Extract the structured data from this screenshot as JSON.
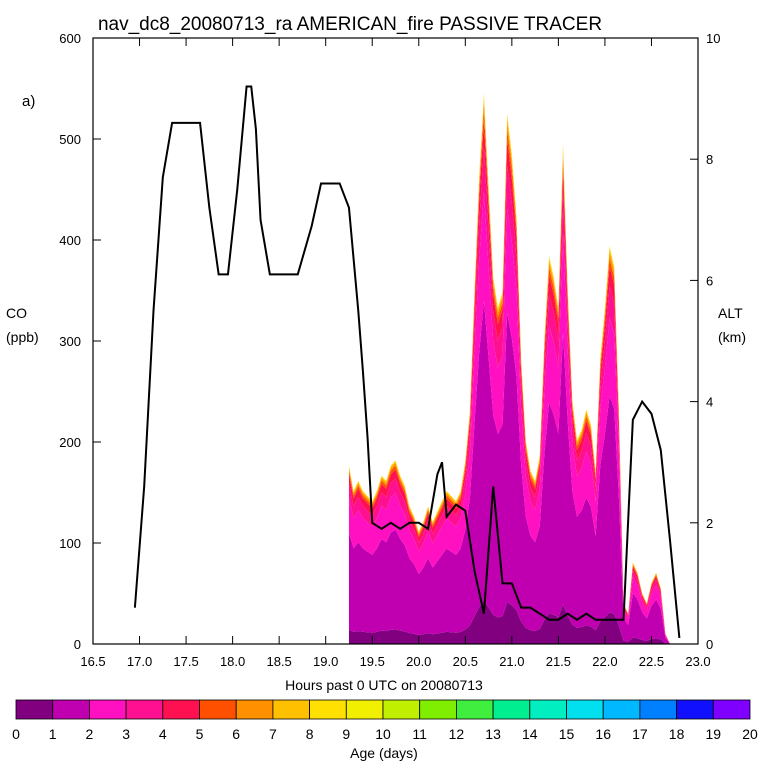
{
  "chart_data": {
    "type": "area",
    "title": "nav_dc8_20080713_ra AMERICAN_fire PASSIVE TRACER",
    "panel_label": "a)",
    "xlabel": "Hours past 0 UTC on 20080713",
    "ylabel_left": [
      "CO",
      "(ppb)"
    ],
    "ylabel_right": [
      "ALT",
      "(km)"
    ],
    "xlim": [
      16.5,
      23.0
    ],
    "ylim_left": [
      0,
      600
    ],
    "ylim_right": [
      0,
      10
    ],
    "x_ticks": [
      "16.5",
      "17.0",
      "17.5",
      "18.0",
      "18.5",
      "19.0",
      "19.5",
      "20.0",
      "20.5",
      "21.0",
      "21.5",
      "22.0",
      "22.5",
      "23.0"
    ],
    "y_ticks_left": [
      "0",
      "100",
      "200",
      "300",
      "400",
      "500",
      "600"
    ],
    "y_ticks_right": [
      "0",
      "2",
      "4",
      "6",
      "8",
      "10"
    ],
    "colorbar": {
      "label": "Age (days)",
      "ticks": [
        "0",
        "1",
        "2",
        "3",
        "4",
        "5",
        "6",
        "7",
        "8",
        "9",
        "10",
        "11",
        "12",
        "13",
        "14",
        "15",
        "16",
        "17",
        "18",
        "19",
        "20"
      ],
      "colors": [
        "#800080",
        "#c000b0",
        "#ff10c0",
        "#ff1090",
        "#ff1050",
        "#ff5000",
        "#ff9000",
        "#ffc000",
        "#ffe000",
        "#f0f000",
        "#c0f000",
        "#80ee00",
        "#40ee40",
        "#00ee90",
        "#00eec0",
        "#00e0ee",
        "#00b8ff",
        "#0080ff",
        "#1010ff",
        "#8000ff"
      ]
    },
    "co_series": {
      "x": [
        19.25,
        19.3,
        19.35,
        19.4,
        19.45,
        19.5,
        19.55,
        19.6,
        19.65,
        19.7,
        19.75,
        19.8,
        19.85,
        19.9,
        19.95,
        20.0,
        20.05,
        20.1,
        20.15,
        20.2,
        20.25,
        20.3,
        20.35,
        20.4,
        20.45,
        20.5,
        20.55,
        20.6,
        20.65,
        20.7,
        20.75,
        20.8,
        20.85,
        20.9,
        20.95,
        21.0,
        21.05,
        21.1,
        21.15,
        21.2,
        21.25,
        21.3,
        21.35,
        21.4,
        21.45,
        21.5,
        21.55,
        21.6,
        21.65,
        21.7,
        21.75,
        21.8,
        21.85,
        21.9,
        21.95,
        22.0,
        22.05,
        22.1,
        22.15,
        22.2,
        22.25,
        22.3,
        22.35,
        22.4,
        22.45,
        22.5,
        22.55,
        22.6,
        22.65,
        22.7,
        22.75,
        22.8
      ],
      "total": [
        175,
        150,
        160,
        150,
        145,
        140,
        150,
        165,
        160,
        175,
        180,
        165,
        155,
        135,
        125,
        110,
        120,
        135,
        120,
        130,
        140,
        150,
        145,
        140,
        150,
        180,
        230,
        350,
        460,
        540,
        450,
        360,
        330,
        345,
        520,
        480,
        420,
        280,
        200,
        170,
        160,
        185,
        300,
        380,
        360,
        330,
        490,
        350,
        240,
        200,
        210,
        230,
        215,
        170,
        280,
        330,
        390,
        370,
        230,
        40,
        30,
        80,
        70,
        50,
        40,
        60,
        70,
        55,
        10,
        0,
        0,
        0
      ],
      "layer_fractions": [
        0.08,
        0.55,
        0.2,
        0.08,
        0.05,
        0.02,
        0.015,
        0.01,
        0.005,
        0.0
      ]
    },
    "alt_series": {
      "x": [
        16.95,
        17.05,
        17.15,
        17.25,
        17.35,
        17.45,
        17.55,
        17.65,
        17.75,
        17.85,
        17.95,
        18.05,
        18.15,
        18.2,
        18.25,
        18.3,
        18.4,
        18.55,
        18.7,
        18.85,
        18.95,
        19.05,
        19.15,
        19.25,
        19.35,
        19.4,
        19.45,
        19.5,
        19.6,
        19.7,
        19.8,
        19.9,
        20.0,
        20.1,
        20.2,
        20.25,
        20.3,
        20.4,
        20.5,
        20.6,
        20.7,
        20.8,
        20.9,
        21.0,
        21.1,
        21.2,
        21.3,
        21.4,
        21.5,
        21.6,
        21.7,
        21.8,
        21.9,
        22.0,
        22.1,
        22.2,
        22.3,
        22.4,
        22.5,
        22.6,
        22.7,
        22.8
      ],
      "alt": [
        0.6,
        2.6,
        5.5,
        7.7,
        8.6,
        8.6,
        8.6,
        8.6,
        7.2,
        6.1,
        6.1,
        7.5,
        9.2,
        9.2,
        8.5,
        7.0,
        6.1,
        6.1,
        6.1,
        6.9,
        7.6,
        7.6,
        7.6,
        7.2,
        5.5,
        4.5,
        3.4,
        2.0,
        1.9,
        2.0,
        1.9,
        2.0,
        2.0,
        1.9,
        2.8,
        3.0,
        2.1,
        2.3,
        2.2,
        1.2,
        0.5,
        2.6,
        1.0,
        1.0,
        0.6,
        0.6,
        0.5,
        0.4,
        0.4,
        0.5,
        0.4,
        0.5,
        0.4,
        0.4,
        0.4,
        0.4,
        3.7,
        4.0,
        3.8,
        3.2,
        1.7,
        0.1
      ]
    }
  }
}
